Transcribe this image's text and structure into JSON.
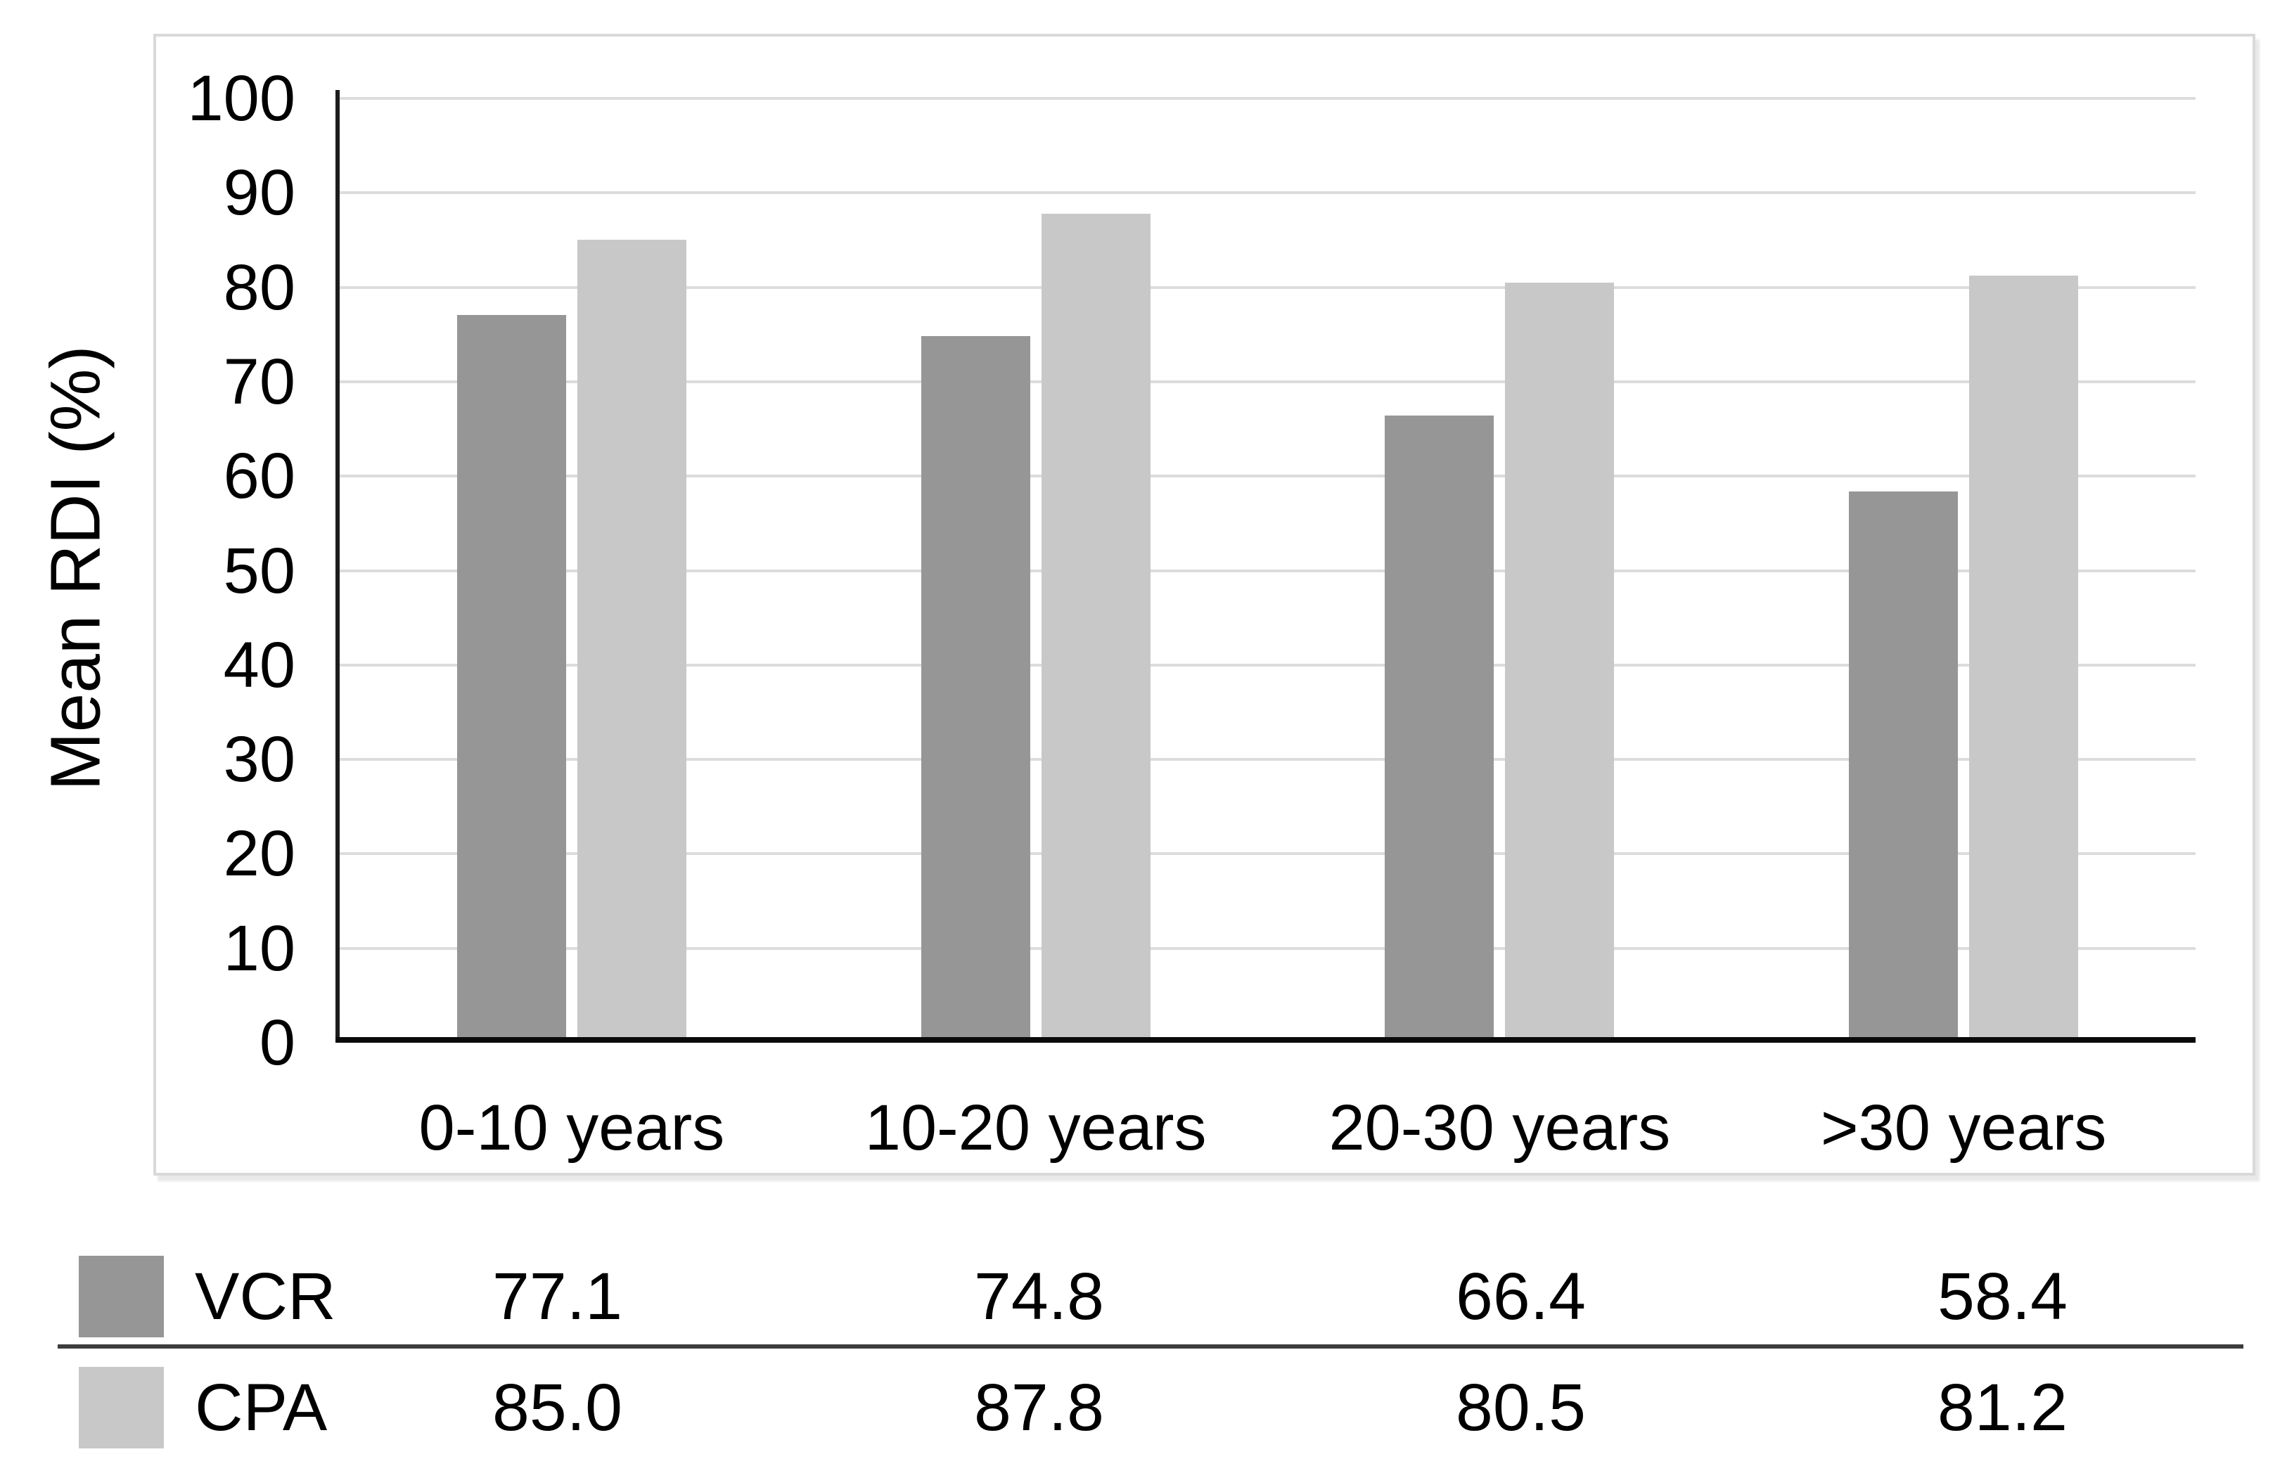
{
  "chart_data": {
    "type": "bar",
    "title": "",
    "ylabel": "Mean RDI (%)",
    "xlabel": "",
    "categories": [
      "0-10 years",
      "10-20 years",
      "20-30 years",
      ">30 years"
    ],
    "series": [
      {
        "name": "VCR",
        "values": [
          77.1,
          74.8,
          66.4,
          58.4
        ],
        "display": [
          "77.1",
          "74.8",
          "66.4",
          "58.4"
        ],
        "color": "#969696"
      },
      {
        "name": "CPA",
        "values": [
          85.0,
          87.8,
          80.5,
          81.2
        ],
        "display": [
          "85.0",
          "87.8",
          "80.5",
          "81.2"
        ],
        "color": "#C8C8C8"
      }
    ],
    "ylim": [
      0,
      100
    ],
    "yticks": [
      0,
      10,
      20,
      30,
      40,
      50,
      60,
      70,
      80,
      90,
      100
    ],
    "grid": true,
    "legend_position": "bottom-table",
    "colors": {
      "gridline": "#DCDCDC",
      "y_axis_line": "#1c1c1c",
      "x_axis_line": "#0a0a0a",
      "chart_border": "#D9D9D9",
      "separator": "#3D3D3D",
      "text": "#000000"
    }
  }
}
